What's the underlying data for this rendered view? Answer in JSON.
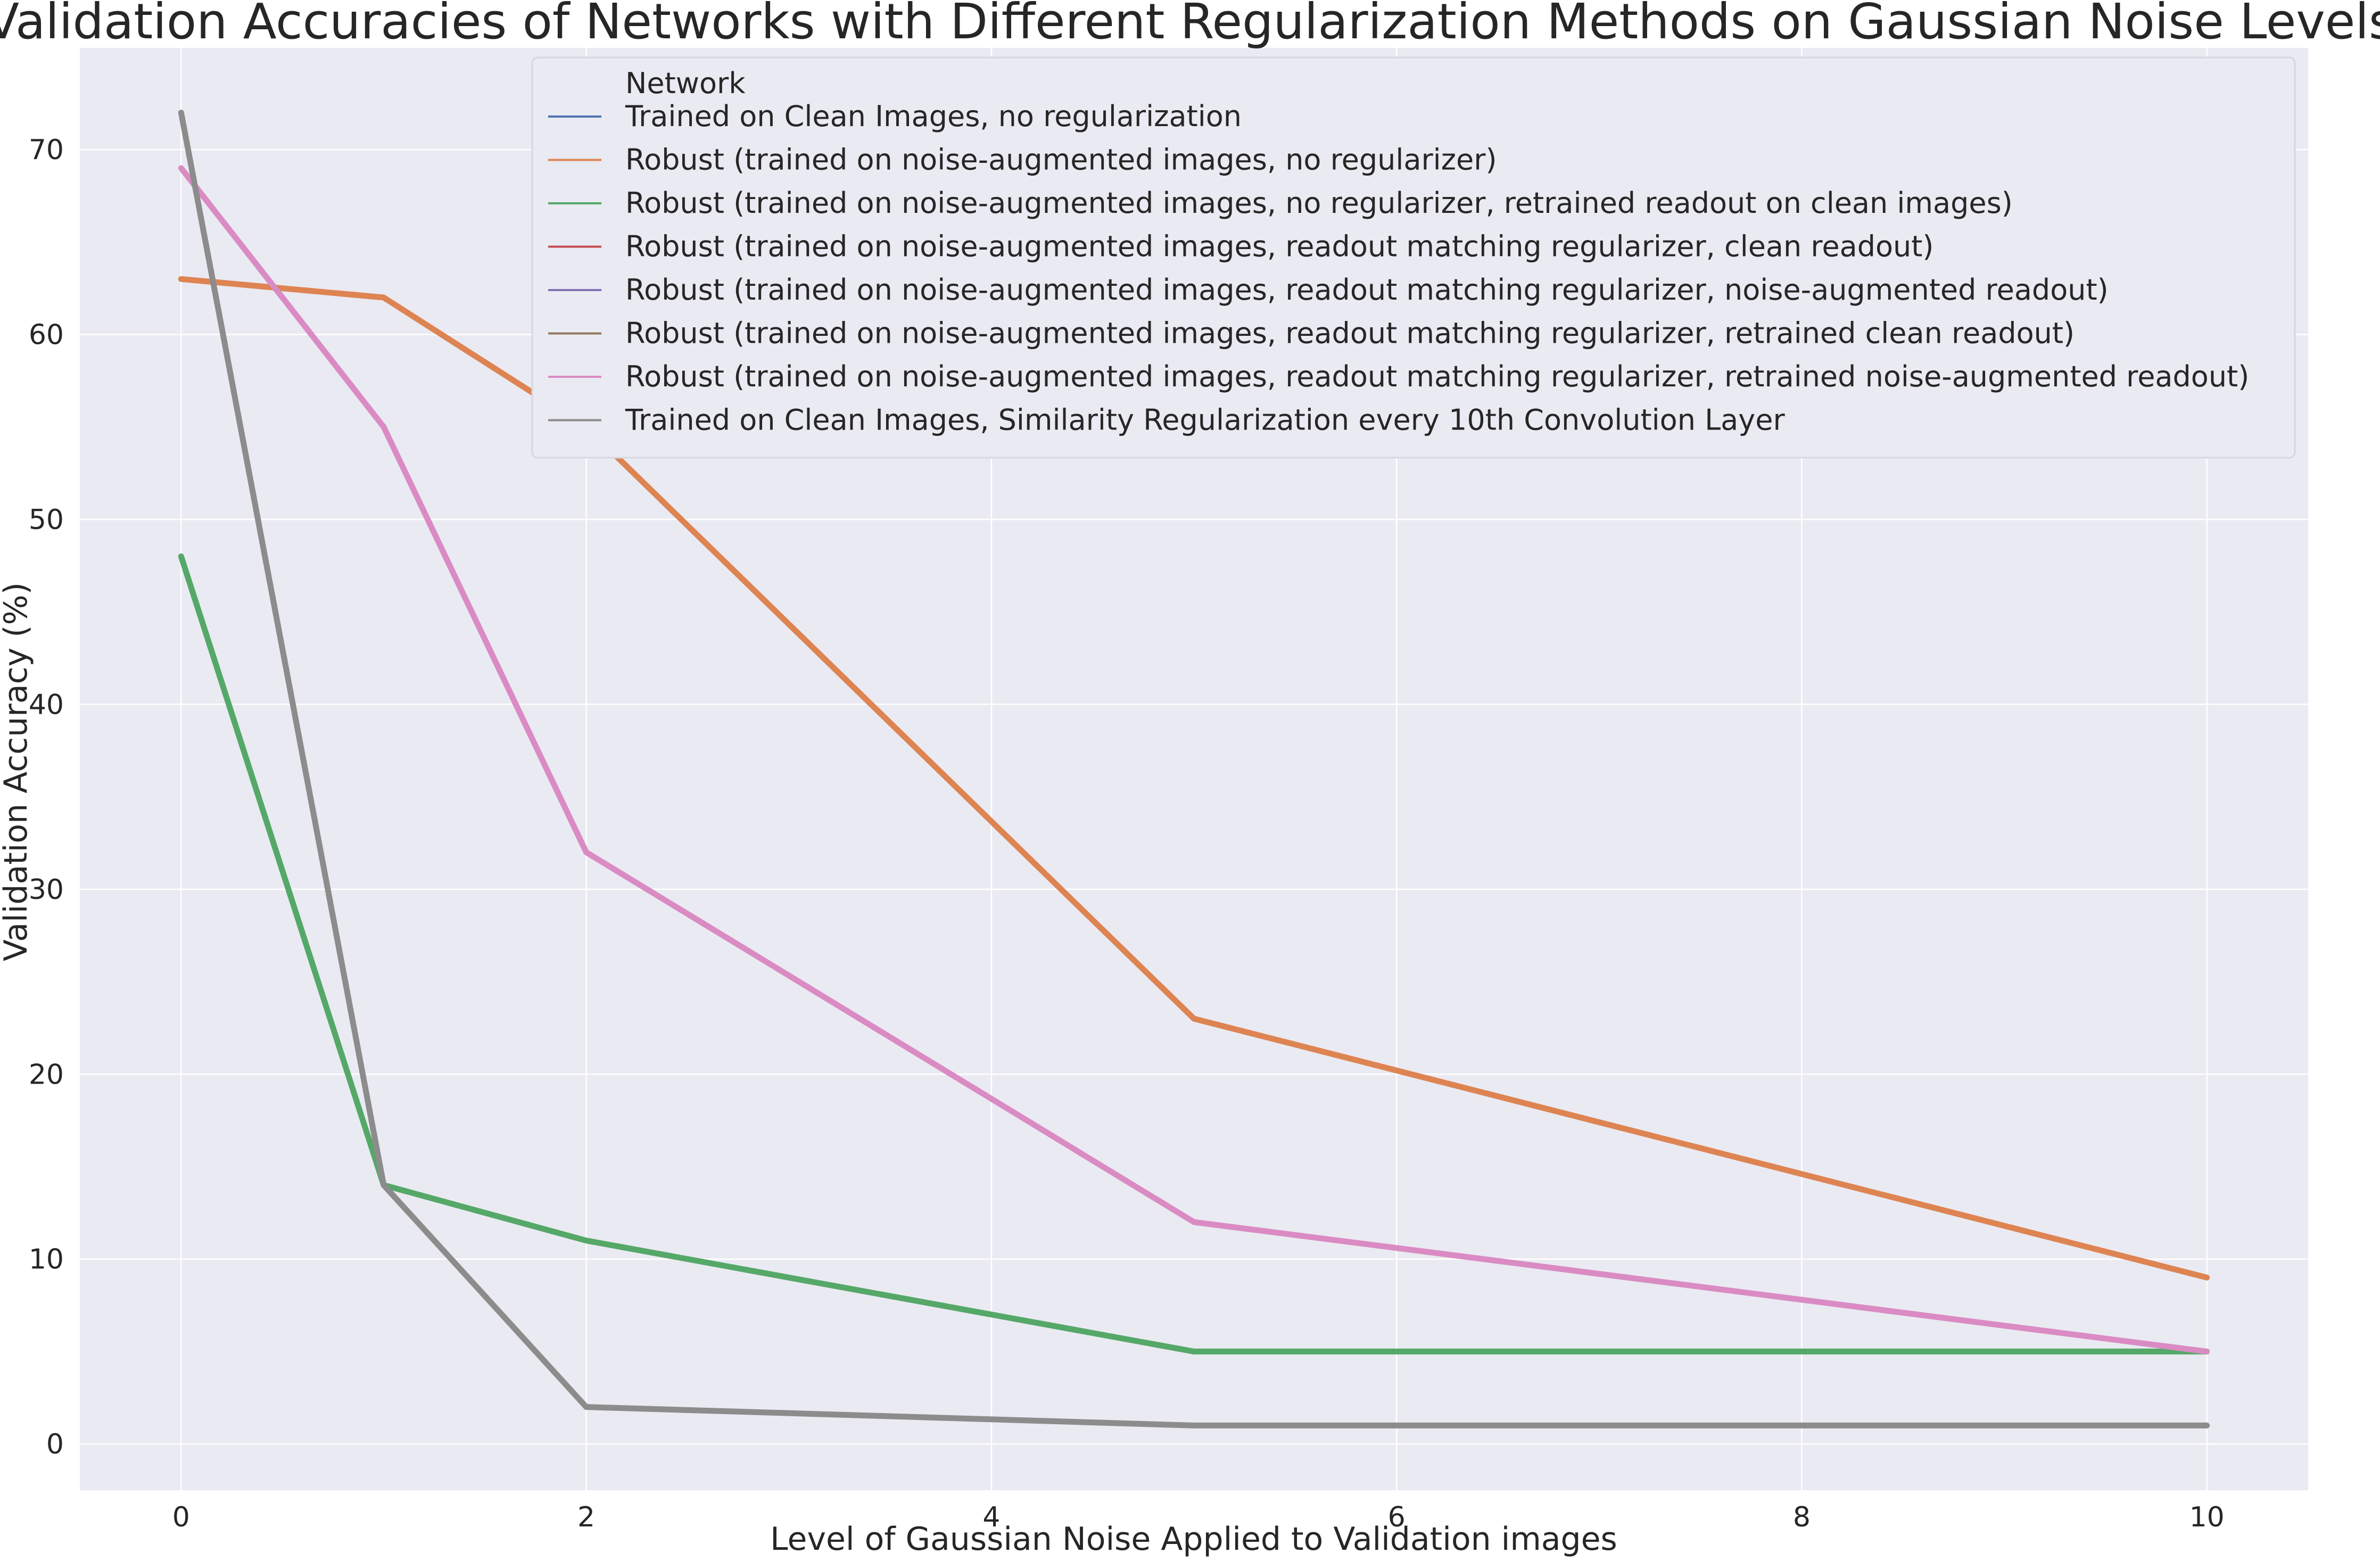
{
  "chart_data": {
    "type": "line",
    "title": "Validation Accuracies of Networks with Different Regularization Methods on Gaussian Noise Levels",
    "xlabel": "Level of Gaussian Noise Applied to Validation images",
    "ylabel": "Validation Accuracy (%)",
    "xlim": [
      -0.5,
      10.5
    ],
    "ylim": [
      -2.5,
      75.5
    ],
    "xticks": [
      0,
      2,
      4,
      6,
      8,
      10
    ],
    "yticks": [
      0,
      10,
      20,
      30,
      40,
      50,
      60,
      70
    ],
    "grid": true,
    "legend": {
      "title": "Network",
      "placement": "top-right"
    },
    "series": [
      {
        "name": "Trained on Clean Images, no regularization",
        "color": "#4c72b0",
        "x": [],
        "values": []
      },
      {
        "name": "Robust (trained on noise-augmented images, no regularizer)",
        "color": "#dd8452",
        "x": [
          0,
          1,
          2,
          5,
          10
        ],
        "values": [
          63,
          62,
          55,
          23,
          9
        ]
      },
      {
        "name": "Robust (trained on noise-augmented images, no regularizer, retrained readout on clean images)",
        "color": "#55a868",
        "x": [
          0,
          1,
          2,
          5,
          10
        ],
        "values": [
          48,
          14,
          11,
          5,
          5
        ]
      },
      {
        "name": "Robust (trained on noise-augmented images, readout matching regularizer, clean readout)",
        "color": "#c44e52",
        "x": [],
        "values": []
      },
      {
        "name": "Robust (trained on noise-augmented images, readout matching regularizer, noise-augmented readout)",
        "color": "#8172b3",
        "x": [],
        "values": []
      },
      {
        "name": "Robust (trained on noise-augmented images, readout matching regularizer, retrained clean readout)",
        "color": "#937860",
        "x": [],
        "values": []
      },
      {
        "name": "Robust (trained on noise-augmented images, readout matching regularizer, retrained noise-augmented readout)",
        "color": "#da8bc3",
        "x": [
          0,
          1,
          2,
          5,
          10
        ],
        "values": [
          69,
          55,
          32,
          12,
          5
        ]
      },
      {
        "name": "Trained on Clean Images, Similarity Regularization every 10th Convolution Layer",
        "color": "#8c8c8c",
        "x": [
          0,
          1,
          2,
          5,
          10
        ],
        "values": [
          72,
          14,
          2,
          1,
          1
        ]
      }
    ],
    "colors": {
      "plot_background": "#eaeaf2",
      "grid": "#ffffff",
      "text": "#262626"
    }
  }
}
